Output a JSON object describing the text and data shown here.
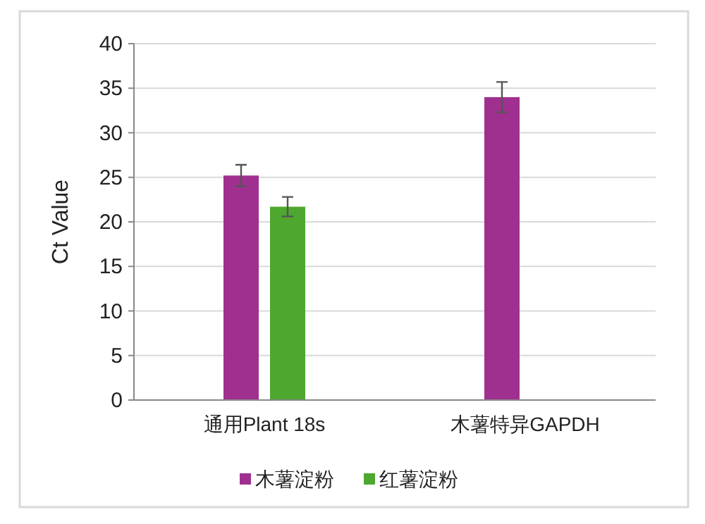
{
  "chart_data": {
    "type": "bar",
    "ylabel": "Ct Value",
    "categories": [
      "通用Plant 18s",
      "木薯特异GAPDH"
    ],
    "series": [
      {
        "name": "木薯淀粉",
        "color": "#a0308f",
        "values": [
          25.2,
          34.0
        ],
        "errors": [
          1.2,
          1.7
        ]
      },
      {
        "name": "红薯淀粉",
        "color": "#4ea72e",
        "values": [
          21.7,
          null
        ],
        "errors": [
          1.1,
          null
        ]
      }
    ],
    "ylim": [
      0,
      40
    ],
    "yticks": [
      0,
      5,
      10,
      15,
      20,
      25,
      30,
      35,
      40
    ],
    "grid": "y",
    "legend": "bottom"
  }
}
